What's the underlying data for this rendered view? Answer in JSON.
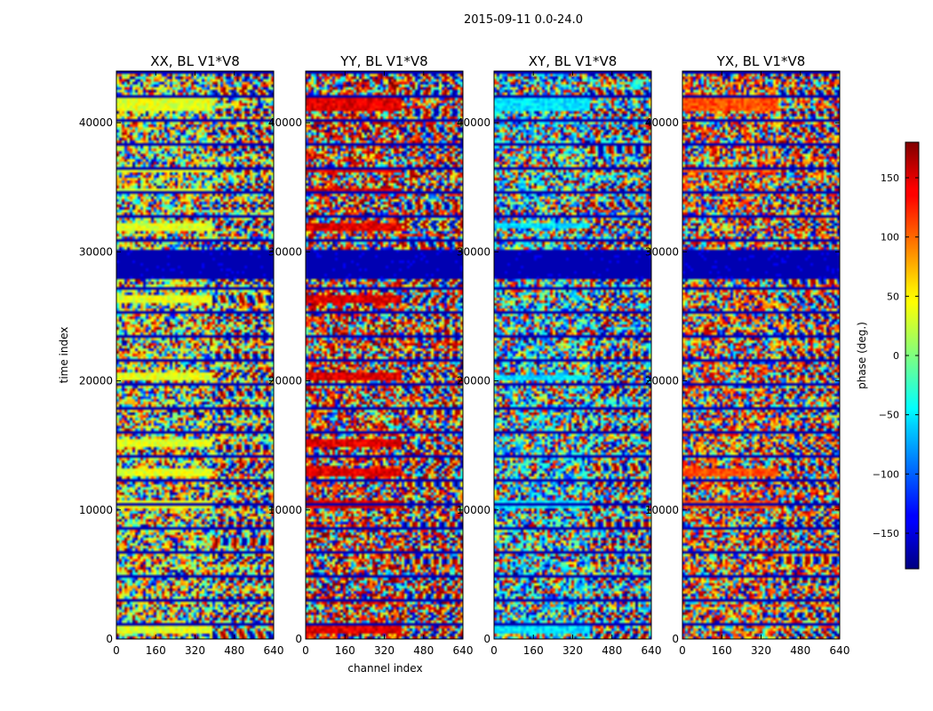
{
  "suptitle": "2015-09-11 0.0-24.0",
  "chart_data": {
    "type": "heatmap",
    "x": {
      "label": "channel index",
      "range": [
        0,
        640
      ],
      "ticks": [
        0,
        160,
        320,
        480,
        640
      ]
    },
    "y": {
      "label": "time index",
      "range": [
        0,
        44000
      ],
      "ticks": [
        0,
        10000,
        20000,
        30000,
        40000
      ]
    },
    "value": {
      "label": "phase (deg.)",
      "range": [
        -180,
        180
      ],
      "ticks": [
        -150,
        -100,
        -50,
        0,
        50,
        100,
        150
      ],
      "colormap": "jet"
    },
    "panels": [
      {
        "title": "XX, BL V1*V8",
        "show_ylabel": true,
        "show_xlabel": false,
        "bias": 10,
        "bias_color": 0.6,
        "strong_rows": [
          [
            41000,
            42200
          ],
          [
            36200,
            36700
          ],
          [
            34600,
            35000
          ],
          [
            31800,
            32300
          ],
          [
            26200,
            26700
          ],
          [
            20100,
            20700
          ],
          [
            15000,
            15600
          ],
          [
            12800,
            13300
          ],
          [
            10200,
            10900
          ],
          [
            500,
            1200
          ]
        ]
      },
      {
        "title": "YY, BL V1*V8",
        "show_ylabel": false,
        "show_xlabel": true,
        "bias": 150,
        "bias_color": 0.9,
        "strong_rows": [
          [
            41000,
            42200
          ],
          [
            36200,
            36700
          ],
          [
            34600,
            35000
          ],
          [
            31800,
            32300
          ],
          [
            26200,
            26700
          ],
          [
            20100,
            20700
          ],
          [
            15000,
            15600
          ],
          [
            12800,
            13300
          ],
          [
            10200,
            10900
          ],
          [
            500,
            1200
          ]
        ]
      },
      {
        "title": "XY, BL V1*V8",
        "show_ylabel": false,
        "show_xlabel": false,
        "bias": -60,
        "bias_color": 0.35,
        "strong_rows": [
          [
            41000,
            42200
          ],
          [
            32000,
            32400
          ],
          [
            20100,
            20500
          ],
          [
            10200,
            10900
          ],
          [
            500,
            1200
          ]
        ]
      },
      {
        "title": "YX, BL V1*V8",
        "show_ylabel": false,
        "show_xlabel": false,
        "bias": 80,
        "bias_color": 0.8,
        "strong_rows": [
          [
            41000,
            42200
          ],
          [
            36200,
            36700
          ],
          [
            12800,
            13300
          ],
          [
            10200,
            10900
          ]
        ]
      }
    ],
    "dark_band": [
      28000,
      30300
    ],
    "grid": false,
    "legend": "colorbar-right"
  }
}
